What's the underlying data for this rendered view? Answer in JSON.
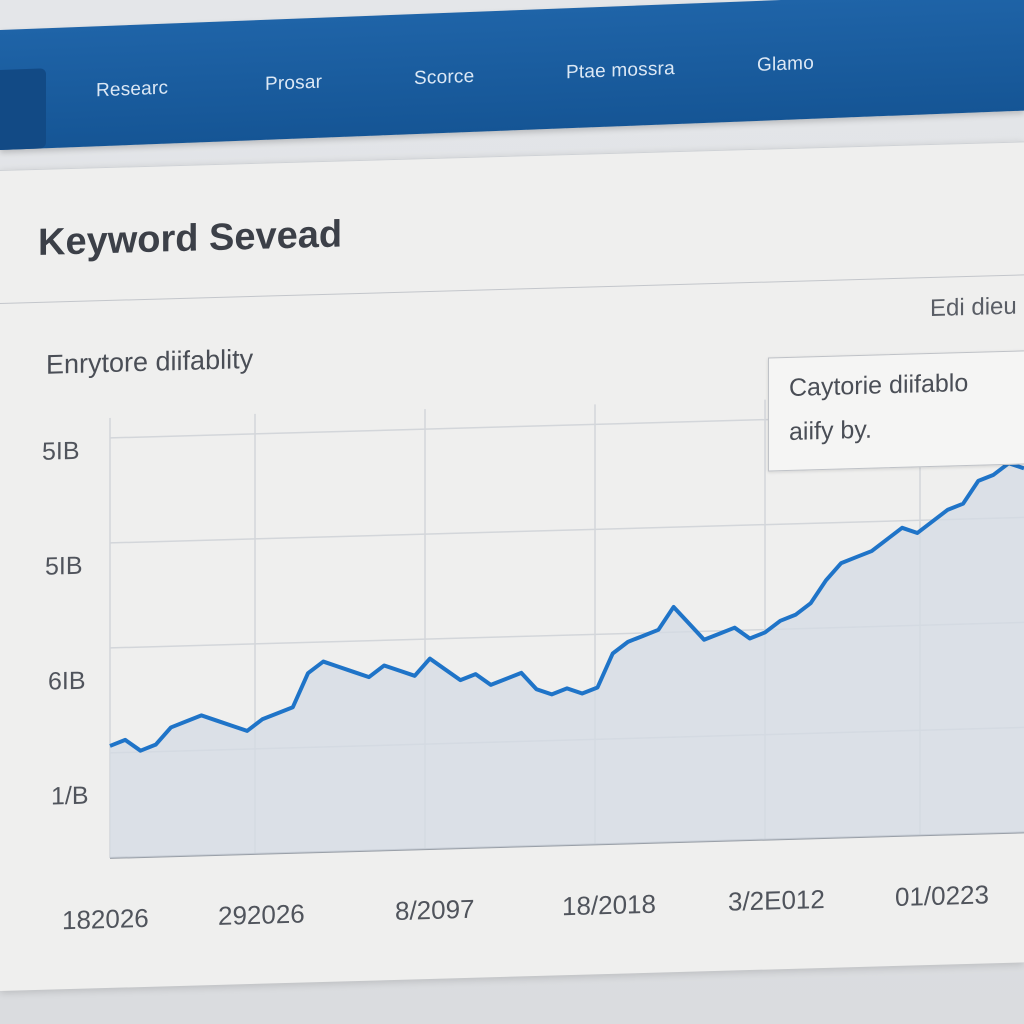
{
  "nav": {
    "items": [
      "Researc",
      "Prosar",
      "Scorce",
      "Ptae mossra",
      "Glamo"
    ]
  },
  "panel": {
    "title": "Keyword Sevead",
    "edit_label": "Edi dieu"
  },
  "chart_data": {
    "type": "area",
    "title": "Enrytore diifablity",
    "legend_entries": [
      "Caytorie diifablo",
      "aiify by."
    ],
    "y_tick_labels": [
      "5IB",
      "5IB",
      "6IB",
      "1/B"
    ],
    "x_tick_labels": [
      "182026",
      "292026",
      "8/2097",
      "18/2018",
      "3/2E012",
      "01/0223"
    ],
    "grid": true,
    "y": [
      2.0,
      2.1,
      1.9,
      2.0,
      2.3,
      2.4,
      2.5,
      2.4,
      2.3,
      2.2,
      2.4,
      2.5,
      2.6,
      3.2,
      3.4,
      3.3,
      3.2,
      3.1,
      3.3,
      3.2,
      3.1,
      3.4,
      3.2,
      3.0,
      3.1,
      2.9,
      3.0,
      3.1,
      2.8,
      2.7,
      2.8,
      2.7,
      2.8,
      3.4,
      3.6,
      3.7,
      3.8,
      4.2,
      3.9,
      3.6,
      3.7,
      3.8,
      3.6,
      3.7,
      3.9,
      4.0,
      4.2,
      4.6,
      4.9,
      5.0,
      5.1,
      5.3,
      5.5,
      5.4,
      5.6,
      5.8,
      5.9,
      6.3,
      6.4,
      6.6,
      6.5
    ]
  },
  "colors": {
    "nav_bg": "#1f64a8",
    "line": "#1f74c8",
    "area_fill": "#d4dbe4"
  }
}
